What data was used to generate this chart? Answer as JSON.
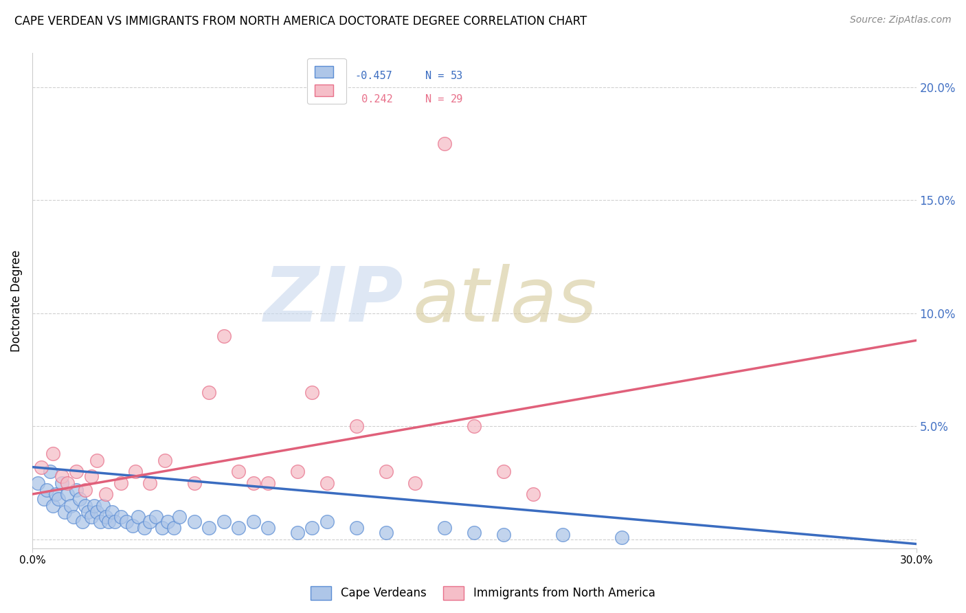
{
  "title": "CAPE VERDEAN VS IMMIGRANTS FROM NORTH AMERICA DOCTORATE DEGREE CORRELATION CHART",
  "source": "Source: ZipAtlas.com",
  "ylabel": "Doctorate Degree",
  "y_ticks": [
    0.0,
    0.05,
    0.1,
    0.15,
    0.2
  ],
  "y_tick_labels": [
    "",
    "5.0%",
    "10.0%",
    "15.0%",
    "20.0%"
  ],
  "x_min": 0.0,
  "x_max": 0.3,
  "y_min": -0.004,
  "y_max": 0.215,
  "blue_R": -0.457,
  "blue_N": 53,
  "pink_R": 0.242,
  "pink_N": 29,
  "blue_color": "#aec6e8",
  "pink_color": "#f5bec8",
  "blue_edge_color": "#5b8dd4",
  "pink_edge_color": "#e8708a",
  "blue_line_color": "#3a6cc0",
  "pink_line_color": "#e0607a",
  "legend_label_blue": "Cape Verdeans",
  "legend_label_pink": "Immigrants from North America",
  "blue_x": [
    0.002,
    0.004,
    0.005,
    0.006,
    0.007,
    0.008,
    0.009,
    0.01,
    0.011,
    0.012,
    0.013,
    0.014,
    0.015,
    0.016,
    0.017,
    0.018,
    0.019,
    0.02,
    0.021,
    0.022,
    0.023,
    0.024,
    0.025,
    0.026,
    0.027,
    0.028,
    0.03,
    0.032,
    0.034,
    0.036,
    0.038,
    0.04,
    0.042,
    0.044,
    0.046,
    0.048,
    0.05,
    0.055,
    0.06,
    0.065,
    0.07,
    0.075,
    0.08,
    0.09,
    0.095,
    0.1,
    0.11,
    0.12,
    0.14,
    0.15,
    0.16,
    0.18,
    0.2
  ],
  "blue_y": [
    0.025,
    0.018,
    0.022,
    0.03,
    0.015,
    0.02,
    0.018,
    0.025,
    0.012,
    0.02,
    0.015,
    0.01,
    0.022,
    0.018,
    0.008,
    0.015,
    0.012,
    0.01,
    0.015,
    0.012,
    0.008,
    0.015,
    0.01,
    0.008,
    0.012,
    0.008,
    0.01,
    0.008,
    0.006,
    0.01,
    0.005,
    0.008,
    0.01,
    0.005,
    0.008,
    0.005,
    0.01,
    0.008,
    0.005,
    0.008,
    0.005,
    0.008,
    0.005,
    0.003,
    0.005,
    0.008,
    0.005,
    0.003,
    0.005,
    0.003,
    0.002,
    0.002,
    0.001
  ],
  "pink_x": [
    0.003,
    0.007,
    0.01,
    0.012,
    0.015,
    0.018,
    0.02,
    0.022,
    0.025,
    0.03,
    0.035,
    0.04,
    0.045,
    0.055,
    0.06,
    0.065,
    0.07,
    0.075,
    0.08,
    0.09,
    0.095,
    0.1,
    0.11,
    0.12,
    0.13,
    0.14,
    0.15,
    0.16,
    0.17
  ],
  "pink_y": [
    0.032,
    0.038,
    0.028,
    0.025,
    0.03,
    0.022,
    0.028,
    0.035,
    0.02,
    0.025,
    0.03,
    0.025,
    0.035,
    0.025,
    0.065,
    0.09,
    0.03,
    0.025,
    0.025,
    0.03,
    0.065,
    0.025,
    0.05,
    0.03,
    0.025,
    0.175,
    0.05,
    0.03,
    0.02
  ],
  "blue_trend_x0": 0.0,
  "blue_trend_y0": 0.032,
  "blue_trend_x1": 0.3,
  "blue_trend_y1": -0.002,
  "pink_trend_x0": 0.0,
  "pink_trend_y0": 0.02,
  "pink_trend_x1": 0.3,
  "pink_trend_y1": 0.088
}
